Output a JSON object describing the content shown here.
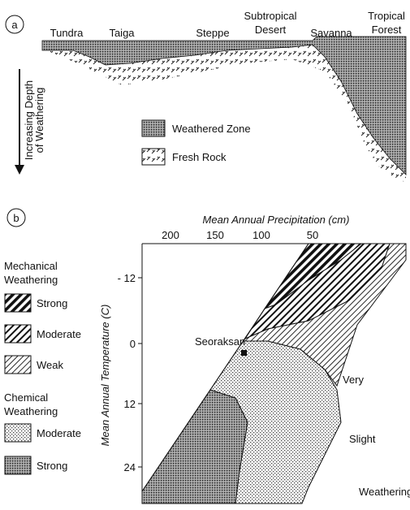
{
  "panel_a": {
    "label": "a",
    "biomes": {
      "tundra": "Tundra",
      "taiga": "Taiga",
      "steppe": "Steppe",
      "desert": [
        "Subtropical",
        "Desert"
      ],
      "savanna": "Savanna",
      "forest": [
        "Tropical",
        "Forest"
      ]
    },
    "axis_label": [
      "Increasing Depth",
      "of Weathering"
    ],
    "legend": [
      "Weathered Zone",
      "Fresh Rock"
    ]
  },
  "panel_b": {
    "label": "b",
    "x_axis": {
      "title": "Mean Annual Precipitation (cm)",
      "ticks": [
        "200",
        "150",
        "100",
        "50"
      ]
    },
    "y_axis": {
      "title": "Mean Annual Temperature (C)",
      "ticks": [
        "- 12",
        "0",
        "12",
        "24"
      ]
    },
    "legend": {
      "mechanical": {
        "title": [
          "Mechanical",
          "Weathering"
        ],
        "items": [
          "Strong",
          "Moderate",
          "Weak"
        ]
      },
      "chemical": {
        "title": [
          "Chemical",
          "Weathering"
        ],
        "items": [
          "Moderate",
          "Strong"
        ]
      }
    },
    "annotations": {
      "site": "Seoraksan",
      "very": "Very",
      "slight": "Slight",
      "weathering": "Weathering"
    }
  }
}
